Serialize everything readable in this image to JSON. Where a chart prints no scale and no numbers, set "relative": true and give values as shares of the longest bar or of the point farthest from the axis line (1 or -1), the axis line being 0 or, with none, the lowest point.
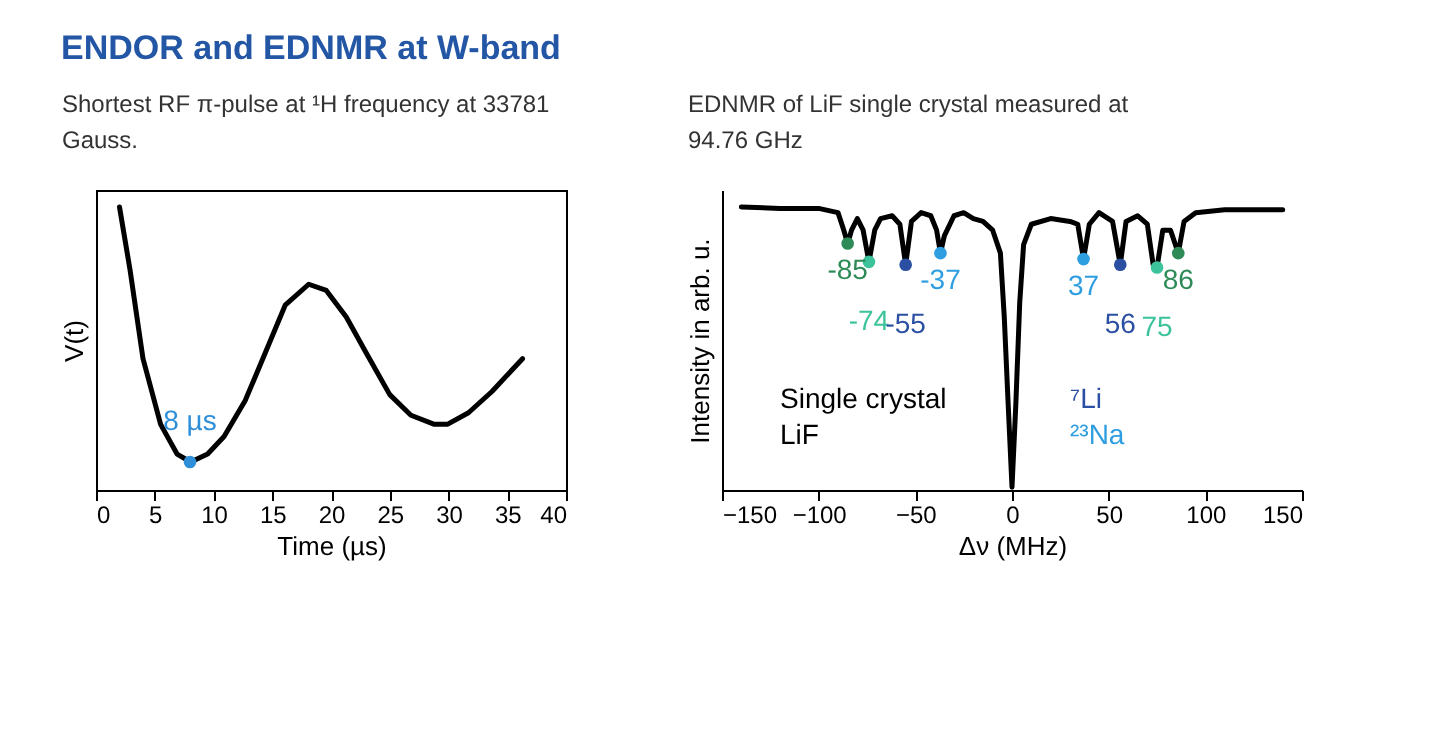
{
  "chart_data": [
    {
      "type": "line",
      "title": "ENDOR and EDNMR at W-band",
      "subtitle": "Shortest RF π-pulse at ¹H frequency at 33781 Gauss.",
      "xlabel": "Time (µs)",
      "ylabel": "V(t)",
      "relative": true,
      "xlim": [
        0,
        40
      ],
      "xticks": [
        0,
        5,
        10,
        15,
        20,
        25,
        30,
        35,
        40
      ],
      "tick_labels": "x",
      "grid": false,
      "legend": false,
      "series": [
        {
          "color": "#000000",
          "x": [
            2.0,
            2.9,
            4.0,
            5.5,
            6.9,
            8.06,
            9.5,
            10.9,
            12.7,
            14.4,
            16.1,
            18.1,
            19.6,
            21.3,
            23.0,
            25.0,
            26.8,
            28.8,
            29.9,
            31.7,
            33.7,
            36.3
          ],
          "values": [
            1.0,
            0.777,
            0.464,
            0.232,
            0.127,
            0.099,
            0.127,
            0.189,
            0.316,
            0.484,
            0.653,
            0.727,
            0.705,
            0.611,
            0.484,
            0.337,
            0.264,
            0.232,
            0.232,
            0.273,
            0.348,
            0.464
          ]
        },
        {
          "type": "scatter",
          "color": "#2f8fd8",
          "x": [
            8
          ],
          "values": [
            0.099
          ]
        }
      ],
      "annotations": [
        {
          "text": "8 µs",
          "x": 8,
          "y": 0.099
        }
      ]
    },
    {
      "type": "line",
      "subtitle": "EDNMR of LiF single crystal measured at 94.76 GHz",
      "xlabel": "Δν (MHz)",
      "ylabel": "Intensity in arb. u.",
      "relative": true,
      "xlim": [
        -150,
        150
      ],
      "xticks": [
        -150,
        -100,
        -50,
        0,
        50,
        100,
        150
      ],
      "tick_labels": "x",
      "grid": false,
      "legend": "bottom right",
      "series": [
        {
          "color": "#000000",
          "x": [
            -140,
            -120,
            -100,
            -90,
            -87,
            -85,
            -83,
            -80,
            -77,
            -74,
            -71,
            -68,
            -62,
            -58,
            -55,
            -52,
            -47,
            -42,
            -39,
            -37,
            -35,
            -30,
            -25,
            -20,
            -15,
            -10,
            -6,
            -4,
            -2,
            0,
            2,
            4,
            6,
            10,
            20,
            30,
            34,
            37,
            40,
            45,
            52,
            56,
            59,
            65,
            70,
            73,
            75,
            78,
            82,
            86,
            89,
            95,
            110,
            125,
            140
          ],
          "values": [
            1.0,
            0.995,
            0.995,
            0.98,
            0.918,
            0.871,
            0.918,
            0.959,
            0.918,
            0.806,
            0.918,
            0.959,
            0.969,
            0.939,
            0.796,
            0.949,
            0.98,
            0.969,
            0.918,
            0.837,
            0.898,
            0.969,
            0.98,
            0.959,
            0.949,
            0.918,
            0.837,
            0.612,
            0.306,
            0.01,
            0.306,
            0.663,
            0.867,
            0.939,
            0.959,
            0.949,
            0.939,
            0.816,
            0.939,
            0.98,
            0.949,
            0.796,
            0.949,
            0.969,
            0.939,
            0.796,
            0.786,
            0.918,
            0.918,
            0.837,
            0.949,
            0.98,
            0.99,
            0.99,
            0.99
          ]
        },
        {
          "type": "scatter",
          "name": "⁷Li",
          "color": "#2b4fa2",
          "x": [
            -55,
            56
          ],
          "values": [
            0.796,
            0.796
          ]
        },
        {
          "type": "scatter",
          "name": "²³Na",
          "color": "#2f9ee0",
          "x": [
            -37,
            37
          ],
          "values": [
            0.837,
            0.816
          ]
        },
        {
          "type": "scatter",
          "color": "#2e8b57",
          "x": [
            -85,
            86
          ],
          "values": [
            0.871,
            0.837
          ]
        },
        {
          "type": "scatter",
          "color": "#3cc39b",
          "x": [
            -74,
            75
          ],
          "values": [
            0.806,
            0.786
          ]
        }
      ],
      "annotations": [
        "Single crystal",
        "LiF",
        {
          "text": "-85",
          "x": -85,
          "y": 0.871
        },
        {
          "text": "-74",
          "x": -74,
          "y": 0.806
        },
        {
          "text": "-55",
          "x": -55,
          "y": 0.796
        },
        {
          "text": "-37",
          "x": -37,
          "y": 0.837
        },
        {
          "text": "37",
          "x": 37,
          "y": 0.816
        },
        {
          "text": "56",
          "x": 56,
          "y": 0.796
        },
        {
          "text": "75",
          "x": 75,
          "y": 0.786
        },
        {
          "text": "86",
          "x": 86,
          "y": 0.837
        }
      ]
    }
  ]
}
